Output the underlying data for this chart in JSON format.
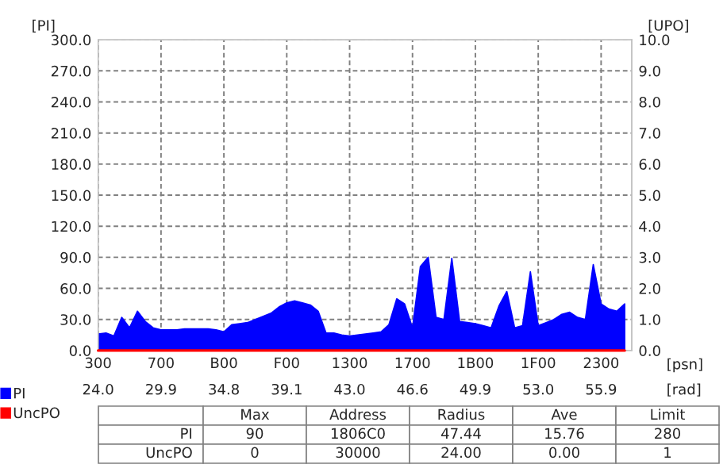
{
  "chart_data": {
    "type": "area",
    "xlabel": "[psn]",
    "ylabel": "[PI]",
    "y2label": "[UPO]",
    "categories": [
      "300",
      null,
      null,
      null,
      null,
      null,
      null,
      null,
      "700",
      null,
      null,
      null,
      null,
      null,
      null,
      null,
      "B00",
      null,
      null,
      null,
      null,
      null,
      null,
      null,
      "F00",
      null,
      null,
      null,
      null,
      null,
      null,
      null,
      "1300",
      null,
      null,
      null,
      null,
      null,
      null,
      null,
      "1700",
      null,
      null,
      null,
      null,
      null,
      null,
      null,
      "1B00",
      null,
      null,
      null,
      null,
      null,
      null,
      null,
      "1F00",
      null,
      null,
      null,
      null,
      null,
      null,
      null,
      "2300",
      null,
      null,
      null
    ],
    "ylim": [
      0,
      300
    ],
    "yticks": [
      {
        "value": 0,
        "label": "0.0"
      },
      {
        "value": 30,
        "label": "30.0"
      },
      {
        "value": 60,
        "label": "60.0"
      },
      {
        "value": 90,
        "label": "90.0"
      },
      {
        "value": 120,
        "label": "120.0"
      },
      {
        "value": 150,
        "label": "150.0"
      },
      {
        "value": 180,
        "label": "180.0"
      },
      {
        "value": 210,
        "label": "210.0"
      },
      {
        "value": 240,
        "label": "240.0"
      },
      {
        "value": 270,
        "label": "270.0"
      },
      {
        "value": 300,
        "label": "300.0"
      }
    ],
    "y2lim": [
      0,
      10
    ],
    "y2ticks": [
      {
        "value": 0,
        "label": "0.0"
      },
      {
        "value": 1,
        "label": "1.0"
      },
      {
        "value": 2,
        "label": "2.0"
      },
      {
        "value": 3,
        "label": "3.0"
      },
      {
        "value": 4,
        "label": "4.0"
      },
      {
        "value": 5,
        "label": "5.0"
      },
      {
        "value": 6,
        "label": "6.0"
      },
      {
        "value": 7,
        "label": "7.0"
      },
      {
        "value": 8,
        "label": "8.0"
      },
      {
        "value": 9,
        "label": "9.0"
      },
      {
        "value": 10,
        "label": "10.0"
      }
    ],
    "grid": true,
    "legend": "bottom left",
    "series": [
      {
        "name": "PI",
        "color": "#0000ff",
        "values": [
          16,
          17,
          14,
          32,
          22,
          38,
          28,
          22,
          20,
          20,
          20,
          21,
          21,
          21,
          21,
          20,
          18,
          25,
          26,
          27,
          30,
          33,
          36,
          42,
          46,
          48,
          46,
          44,
          38,
          17,
          17,
          15,
          14,
          15,
          16,
          17,
          18,
          25,
          50,
          45,
          22,
          81,
          90,
          32,
          30,
          89,
          28,
          27,
          26,
          24,
          22,
          43,
          57,
          22,
          24,
          76,
          24,
          27,
          30,
          35,
          37,
          32,
          30,
          83,
          45,
          40,
          38,
          45
        ]
      },
      {
        "name": "UncPO",
        "color": "#ff0000",
        "type": "line",
        "axis": "y2",
        "values": [
          0,
          0,
          0,
          0,
          0,
          0,
          0,
          0,
          0,
          0,
          0,
          0,
          0,
          0,
          0,
          0,
          0,
          0,
          0,
          0,
          0,
          0,
          0,
          0,
          0,
          0,
          0,
          0,
          0,
          0,
          0,
          0,
          0,
          0,
          0,
          0,
          0,
          0,
          0,
          0,
          0,
          0,
          0,
          0,
          0,
          0,
          0,
          0,
          0,
          0,
          0,
          0,
          0,
          0,
          0,
          0,
          0,
          0,
          0,
          0,
          0,
          0,
          0,
          0,
          0,
          0,
          0,
          0
        ]
      }
    ],
    "annotations": [
      "24.0",
      "29.9",
      "34.8",
      "39.1",
      "43.0",
      "46.6",
      "49.9",
      "53.0",
      "55.9",
      "[rad]",
      "Max",
      "Address",
      "Radius",
      "Ave",
      "Limit",
      "PI",
      "90",
      "1806C0",
      "47.44",
      "15.76",
      "280",
      "UncPO",
      "0",
      "30000",
      "24.00",
      "0.00",
      "1"
    ]
  }
}
